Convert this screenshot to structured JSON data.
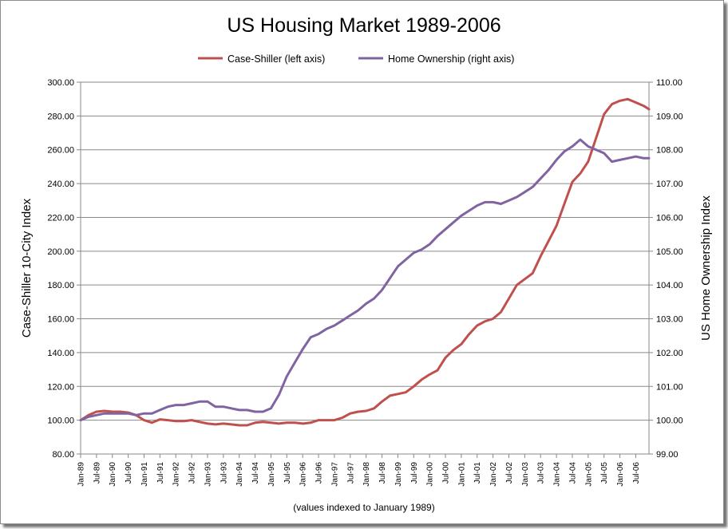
{
  "chart_data": {
    "type": "line",
    "title": "US Housing Market 1989-2006",
    "ylabel": "Case-Shiller 10-City Index",
    "y2label": "US Home Ownership Index",
    "footnote": "(values indexed to January 1989)",
    "legend_position": "top",
    "grid": true,
    "ylim": [
      80,
      300
    ],
    "y2lim": [
      99,
      110
    ],
    "yticks": [
      "80.00",
      "100.00",
      "120.00",
      "140.00",
      "160.00",
      "180.00",
      "200.00",
      "220.00",
      "240.00",
      "260.00",
      "280.00",
      "300.00"
    ],
    "y2ticks": [
      "99.00",
      "100.00",
      "101.00",
      "102.00",
      "103.00",
      "104.00",
      "105.00",
      "106.00",
      "107.00",
      "108.00",
      "109.00",
      "110.00"
    ],
    "x_tick_labels": [
      "Jan-89",
      "Jul-89",
      "Jan-90",
      "Jul-90",
      "Jan-91",
      "Jul-91",
      "Jan-92",
      "Jul-92",
      "Jan-93",
      "Jul-93",
      "Jan-94",
      "Jul-94",
      "Jan-95",
      "Jul-95",
      "Jan-96",
      "Jul-96",
      "Jan-97",
      "Jul-97",
      "Jan-98",
      "Jul-98",
      "Jan-99",
      "Jul-99",
      "Jan-00",
      "Jul-00",
      "Jan-01",
      "Jul-01",
      "Jan-02",
      "Jul-02",
      "Jan-03",
      "Jul-03",
      "Jan-04",
      "Jul-04",
      "Jan-05",
      "Jul-05",
      "Jan-06",
      "Jul-06"
    ],
    "x": [
      "Jan-89",
      "Apr-89",
      "Jul-89",
      "Oct-89",
      "Jan-90",
      "Apr-90",
      "Jul-90",
      "Oct-90",
      "Jan-91",
      "Apr-91",
      "Jul-91",
      "Oct-91",
      "Jan-92",
      "Apr-92",
      "Jul-92",
      "Oct-92",
      "Jan-93",
      "Apr-93",
      "Jul-93",
      "Oct-93",
      "Jan-94",
      "Apr-94",
      "Jul-94",
      "Oct-94",
      "Jan-95",
      "Apr-95",
      "Jul-95",
      "Oct-95",
      "Jan-96",
      "Apr-96",
      "Jul-96",
      "Oct-96",
      "Jan-97",
      "Apr-97",
      "Jul-97",
      "Oct-97",
      "Jan-98",
      "Apr-98",
      "Jul-98",
      "Oct-98",
      "Jan-99",
      "Apr-99",
      "Jul-99",
      "Oct-99",
      "Jan-00",
      "Apr-00",
      "Jul-00",
      "Oct-00",
      "Jan-01",
      "Apr-01",
      "Jul-01",
      "Oct-01",
      "Jan-02",
      "Apr-02",
      "Jul-02",
      "Oct-02",
      "Jan-03",
      "Apr-03",
      "Jul-03",
      "Oct-03",
      "Jan-04",
      "Apr-04",
      "Jul-04",
      "Oct-04",
      "Jan-05",
      "Apr-05",
      "Jul-05",
      "Oct-05",
      "Jan-06",
      "Apr-06",
      "Jul-06",
      "Oct-06",
      "Dec-06"
    ],
    "series": [
      {
        "name": "Case-Shiller (left axis)",
        "axis": "left",
        "color": "#c0504d",
        "values": [
          100,
          103,
          105,
          105.5,
          105,
          105,
          104.5,
          103,
          100,
          98.5,
          100.5,
          100,
          99.5,
          99.5,
          100,
          99,
          98,
          97.5,
          98,
          97.5,
          97,
          97,
          98.5,
          99,
          98.5,
          98,
          98.5,
          98.5,
          98,
          98.5,
          100,
          100,
          100,
          101.5,
          104,
          105,
          105.5,
          107,
          111,
          114.5,
          115.5,
          116.5,
          120,
          124,
          127,
          129.5,
          137,
          141.5,
          145,
          151,
          156,
          158.5,
          160,
          164,
          172,
          180,
          183.5,
          187,
          197,
          206,
          215,
          228,
          241,
          246,
          253,
          267,
          281,
          287,
          289,
          290,
          288,
          286,
          284
        ]
      },
      {
        "name": "Home Ownership (right axis)",
        "axis": "right",
        "color": "#8064a2",
        "values": [
          100,
          100.1,
          100.15,
          100.2,
          100.2,
          100.2,
          100.2,
          100.15,
          100.2,
          100.2,
          100.3,
          100.4,
          100.45,
          100.45,
          100.5,
          100.55,
          100.55,
          100.4,
          100.4,
          100.35,
          100.3,
          100.3,
          100.25,
          100.25,
          100.35,
          100.75,
          101.3,
          101.7,
          102.1,
          102.45,
          102.55,
          102.7,
          102.8,
          102.95,
          103.1,
          103.25,
          103.45,
          103.6,
          103.85,
          104.2,
          104.55,
          104.75,
          104.95,
          105.05,
          105.2,
          105.45,
          105.65,
          105.85,
          106.05,
          106.2,
          106.35,
          106.45,
          106.45,
          106.4,
          106.5,
          106.6,
          106.75,
          106.9,
          107.15,
          107.4,
          107.7,
          107.95,
          108.1,
          108.3,
          108.1,
          108.0,
          107.9,
          107.65,
          107.7,
          107.75,
          107.8,
          107.75,
          107.75
        ]
      }
    ]
  }
}
